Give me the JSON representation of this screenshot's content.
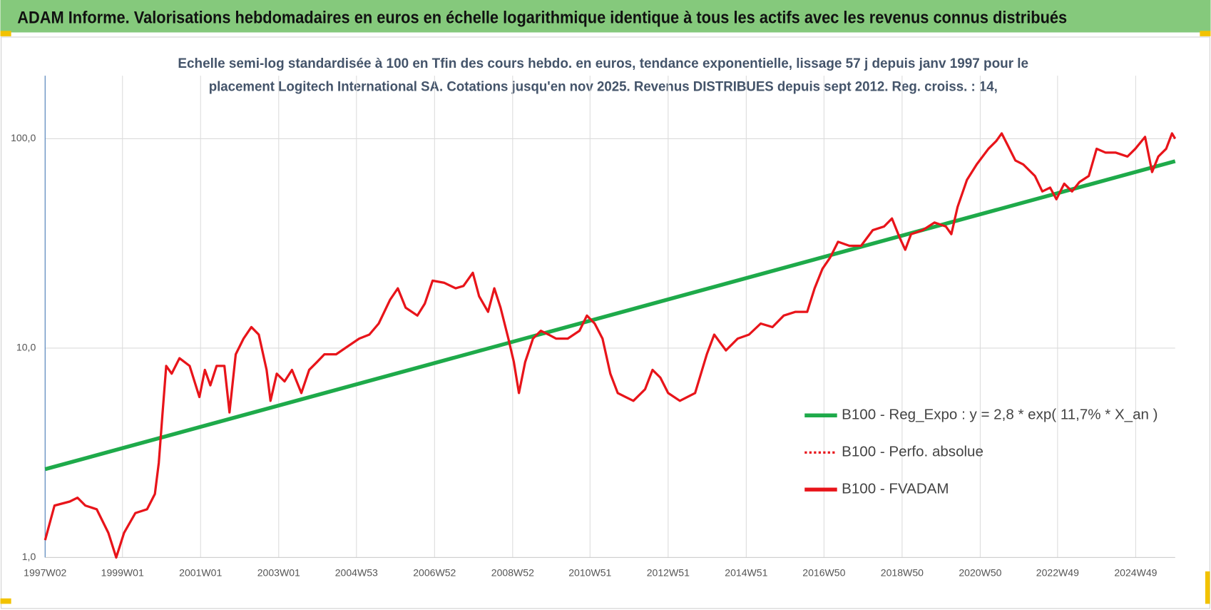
{
  "header": {
    "title": "ADAM Informe. Valorisations hebdomadaires en euros en échelle logarithmique identique à tous les actifs avec les revenus connus distribués"
  },
  "chart_data": {
    "type": "line",
    "title": [
      "Echelle semi-log standardisée à 100 en Tfin des cours hebdo. en euros, tendance exponentielle, lissage 57 j depuis janv 1997 pour le",
      "placement Logitech International SA. Cotations jusqu'en nov 2025. Revenus DISTRIBUES depuis sept 2012. Reg. croiss. : 14,"
    ],
    "xlim": [
      1997.02,
      2025.95
    ],
    "xticks": [
      {
        "value": 1997.02,
        "label": "1997W02"
      },
      {
        "value": 1999.0,
        "label": "1999W01"
      },
      {
        "value": 2001.0,
        "label": "2001W01"
      },
      {
        "value": 2003.0,
        "label": "2003W01"
      },
      {
        "value": 2004.99,
        "label": "2004W53"
      },
      {
        "value": 2006.99,
        "label": "2006W52"
      },
      {
        "value": 2008.99,
        "label": "2008W52"
      },
      {
        "value": 2010.97,
        "label": "2010W51"
      },
      {
        "value": 2012.97,
        "label": "2012W51"
      },
      {
        "value": 2014.97,
        "label": "2014W51"
      },
      {
        "value": 2016.96,
        "label": "2016W50"
      },
      {
        "value": 2018.96,
        "label": "2018W50"
      },
      {
        "value": 2020.96,
        "label": "2020W50"
      },
      {
        "value": 2022.94,
        "label": "2022W49"
      },
      {
        "value": 2024.94,
        "label": "2024W49"
      }
    ],
    "ylim": [
      1,
      200
    ],
    "yticks": [
      {
        "value": 1,
        "label": "1,0"
      },
      {
        "value": 10,
        "label": "10,0"
      },
      {
        "value": 100,
        "label": "100,0"
      }
    ],
    "log_y": true,
    "grid": true,
    "series": [
      {
        "name": "B100 - Reg_Expo : y = 2,8 * exp( 11,7% *  X_an )",
        "color": "#1eaa4a",
        "style": "solid",
        "x": [
          1997.02,
          2025.95
        ],
        "values": [
          2.64,
          78.1
        ]
      },
      {
        "name": "B100 - Perfo. absolue",
        "color": "#e8141a",
        "style": "dotted"
      },
      {
        "name": "B100 - FVADAM",
        "color": "#e8141a",
        "style": "solid",
        "x": [
          1997.02,
          1997.26,
          1997.65,
          1997.85,
          1998.05,
          1998.34,
          1998.64,
          1998.84,
          1999.04,
          1999.33,
          1999.63,
          1999.83,
          1999.93,
          2000.02,
          2000.12,
          2000.26,
          2000.46,
          2000.72,
          2000.97,
          2001.11,
          2001.25,
          2001.41,
          2001.61,
          2001.74,
          2001.9,
          2002.1,
          2002.3,
          2002.49,
          2002.69,
          2002.79,
          2002.95,
          2003.15,
          2003.34,
          2003.58,
          2003.78,
          2003.98,
          2004.17,
          2004.47,
          2004.77,
          2005.06,
          2005.32,
          2005.56,
          2005.85,
          2006.05,
          2006.25,
          2006.55,
          2006.74,
          2006.94,
          2007.24,
          2007.53,
          2007.73,
          2007.97,
          2008.13,
          2008.36,
          2008.52,
          2008.68,
          2008.88,
          2009.02,
          2009.15,
          2009.31,
          2009.51,
          2009.71,
          2009.91,
          2010.1,
          2010.4,
          2010.7,
          2010.89,
          2011.09,
          2011.29,
          2011.49,
          2011.68,
          2011.88,
          2012.08,
          2012.38,
          2012.57,
          2012.77,
          2012.97,
          2013.27,
          2013.66,
          2013.96,
          2014.15,
          2014.45,
          2014.75,
          2015.04,
          2015.34,
          2015.64,
          2015.93,
          2016.23,
          2016.53,
          2016.72,
          2016.92,
          2017.12,
          2017.32,
          2017.61,
          2017.91,
          2018.21,
          2018.5,
          2018.7,
          2018.9,
          2019.04,
          2019.19,
          2019.49,
          2019.79,
          2020.08,
          2020.22,
          2020.38,
          2020.62,
          2020.87,
          2021.17,
          2021.37,
          2021.51,
          2021.66,
          2021.86,
          2022.06,
          2022.36,
          2022.55,
          2022.75,
          2022.91,
          2023.11,
          2023.31,
          2023.5,
          2023.74,
          2023.94,
          2024.17,
          2024.43,
          2024.73,
          2024.93,
          2025.18,
          2025.36,
          2025.52,
          2025.72,
          2025.87,
          2025.95
        ],
        "values": [
          1.21,
          1.77,
          1.85,
          1.93,
          1.77,
          1.7,
          1.31,
          1.0,
          1.31,
          1.63,
          1.7,
          2.01,
          2.83,
          4.72,
          8.22,
          7.55,
          8.95,
          8.22,
          5.84,
          7.87,
          6.64,
          8.22,
          8.22,
          4.93,
          9.34,
          11.1,
          12.6,
          11.6,
          7.87,
          5.6,
          7.55,
          6.93,
          7.87,
          6.1,
          7.87,
          8.58,
          9.34,
          9.34,
          10.2,
          11.1,
          11.6,
          13.1,
          17.0,
          19.3,
          15.6,
          14.3,
          16.3,
          21.0,
          20.5,
          19.3,
          19.8,
          22.9,
          17.7,
          14.9,
          19.3,
          15.6,
          11.1,
          8.58,
          6.1,
          8.58,
          11.1,
          12.1,
          11.6,
          11.1,
          11.1,
          12.1,
          14.3,
          13.1,
          11.1,
          7.55,
          6.1,
          5.84,
          5.6,
          6.36,
          7.87,
          7.23,
          6.1,
          5.6,
          6.1,
          9.34,
          11.6,
          9.75,
          11.1,
          11.6,
          13.1,
          12.6,
          14.3,
          14.9,
          14.9,
          19.3,
          23.9,
          27.1,
          32.2,
          30.8,
          30.8,
          36.6,
          38.1,
          41.6,
          33.6,
          29.5,
          35.0,
          36.6,
          39.8,
          38.1,
          35.0,
          47.2,
          63.6,
          75.4,
          89.5,
          97.5,
          106,
          93.4,
          78.7,
          75.4,
          66.4,
          56.0,
          58.4,
          51.4,
          61.0,
          56.0,
          62.1,
          66.4,
          89.5,
          85.8,
          85.8,
          82.2,
          89.5,
          102,
          69.3,
          82.2,
          89.5,
          106,
          100
        ]
      }
    ]
  }
}
